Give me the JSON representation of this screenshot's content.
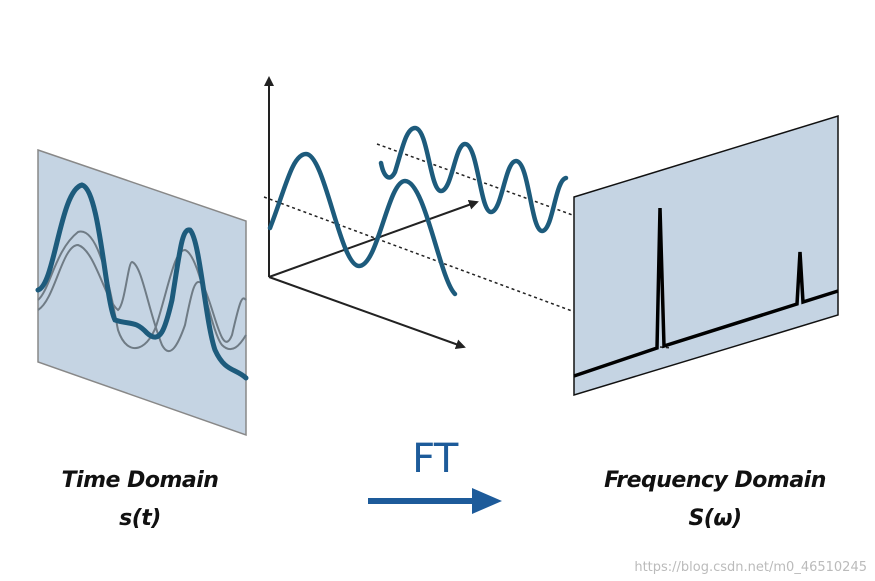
{
  "labels": {
    "time_domain": "Time Domain",
    "time_signal": "s(t)",
    "transform": "FT",
    "frequency_domain": "Frequency Domain",
    "frequency_signal": "S(ω)"
  },
  "watermark": "https://blog.csdn.net/m0_46510245",
  "colors": {
    "signal": "#1d5b7c",
    "panel": "#c5d4e3",
    "component": "#6f7b85"
  }
}
